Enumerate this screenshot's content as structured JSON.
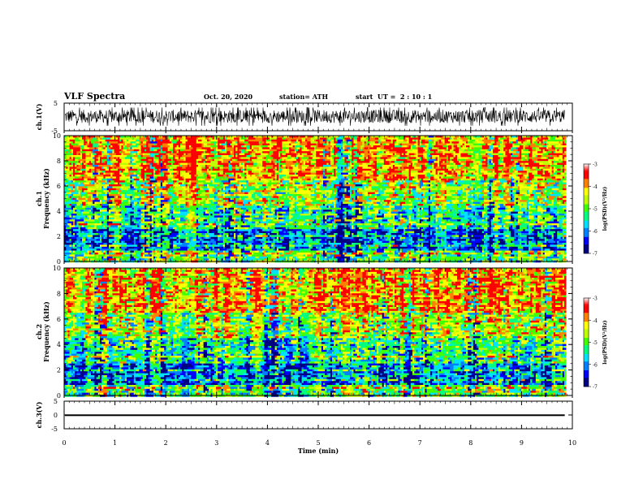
{
  "header": {
    "title": "VLF Spectra",
    "date": "Oct. 20, 2020",
    "station": "station= ATH",
    "start": "start  UT =  2 : 10 : 1"
  },
  "chart_data": {
    "type": "heatmap",
    "x_unit_label": "Time  (min)",
    "xlim": [
      0,
      10
    ],
    "x_ticks": [
      "0",
      "1",
      "2",
      "3",
      "4",
      "5",
      "6",
      "7",
      "8",
      "9",
      "10"
    ],
    "data_end_min": 9.85,
    "panels": [
      {
        "id": "ch1-waveform",
        "kind": "waveform",
        "ylabel": "ch.1(V)",
        "ylim": [
          -5,
          5
        ],
        "y_ticks": [
          "5",
          "-5"
        ],
        "description_values": {
          "typical_range": [
            -2.2,
            2.6
          ]
        }
      },
      {
        "id": "ch1-spectrogram",
        "kind": "spectrogram",
        "ylabel_top": "ch.1",
        "ylabel": "Frequency  (kHz)",
        "ylim": [
          0,
          10
        ],
        "y_ticks": [
          "0",
          "2",
          "4",
          "6",
          "8",
          "10"
        ],
        "colorbar": {
          "label": "log(PSD)(V²/Hz)",
          "ticks": [
            "-3",
            "-4",
            "-5",
            "-6",
            "-7"
          ],
          "range": [
            -7,
            -3
          ]
        }
      },
      {
        "id": "ch2-spectrogram",
        "kind": "spectrogram",
        "ylabel_top": "ch.2",
        "ylabel": "Frequency  (kHz)",
        "ylim": [
          0,
          10
        ],
        "y_ticks": [
          "0",
          "2",
          "4",
          "6",
          "8",
          "10"
        ],
        "colorbar": {
          "label": "log(PSD)(V²/Hz)",
          "ticks": [
            "-3",
            "-4",
            "-5",
            "-6",
            "-7"
          ],
          "range": [
            -7,
            -3
          ]
        }
      },
      {
        "id": "ch3-waveform",
        "kind": "waveform",
        "ylabel": "ch.3(V)",
        "ylim": [
          -5,
          5
        ],
        "y_ticks": [
          "5",
          "0",
          "-5"
        ],
        "description_values": {
          "typical_range": [
            -0.4,
            0.2
          ]
        }
      }
    ],
    "colormap": [
      "#000080",
      "#0000ff",
      "#0080ff",
      "#00e0ff",
      "#00ff80",
      "#40ff00",
      "#c0ff00",
      "#ffff00",
      "#ff8000",
      "#ff0000"
    ]
  }
}
